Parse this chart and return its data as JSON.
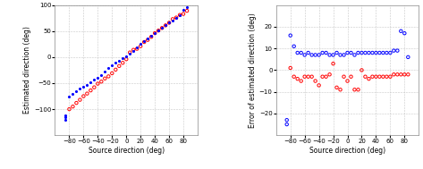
{
  "left_blue_x": [
    -85,
    -85,
    -85,
    -80,
    -75,
    -70,
    -65,
    -60,
    -55,
    -50,
    -45,
    -40,
    -35,
    -30,
    -25,
    -20,
    -15,
    -10,
    -5,
    0,
    5,
    10,
    15,
    20,
    25,
    30,
    35,
    40,
    45,
    50,
    55,
    60,
    65,
    70,
    75,
    80,
    85
  ],
  "left_blue_y": [
    -120,
    -115,
    -112,
    -75,
    -70,
    -65,
    -60,
    -57,
    -54,
    -49,
    -44,
    -39,
    -34,
    -27,
    -21,
    -16,
    -11,
    -7,
    -2,
    1,
    6,
    11,
    19,
    26,
    31,
    36,
    41,
    46,
    51,
    56,
    61,
    66,
    71,
    76,
    81,
    91,
    96
  ],
  "left_red_x": [
    -80,
    -75,
    -70,
    -65,
    -60,
    -55,
    -50,
    -45,
    -40,
    -35,
    -30,
    -25,
    -20,
    -15,
    -10,
    -5,
    0,
    5,
    10,
    15,
    20,
    25,
    30,
    35,
    40,
    45,
    50,
    55,
    60,
    65,
    70,
    75,
    80,
    85
  ],
  "left_red_y": [
    -100,
    -95,
    -88,
    -82,
    -75,
    -70,
    -64,
    -58,
    -51,
    -47,
    -41,
    -37,
    -31,
    -24,
    -17,
    -11,
    -4,
    9,
    14,
    16,
    21,
    29,
    33,
    39,
    46,
    51,
    56,
    61,
    66,
    73,
    76,
    81,
    83,
    89
  ],
  "right_blue_x": [
    -85,
    -85,
    -80,
    -75,
    -70,
    -65,
    -60,
    -55,
    -50,
    -45,
    -40,
    -35,
    -30,
    -25,
    -20,
    -15,
    -10,
    -5,
    0,
    5,
    10,
    15,
    20,
    25,
    30,
    35,
    40,
    45,
    50,
    55,
    60,
    65,
    70,
    75,
    80,
    85
  ],
  "right_blue_y": [
    -25,
    -23,
    16,
    11,
    8,
    8,
    7,
    8,
    7,
    7,
    7,
    8,
    8,
    7,
    7,
    8,
    7,
    7,
    8,
    8,
    7,
    8,
    8,
    8,
    8,
    8,
    8,
    8,
    8,
    8,
    8,
    9,
    9,
    18,
    17,
    6
  ],
  "right_red_x": [
    -80,
    -75,
    -70,
    -65,
    -60,
    -55,
    -50,
    -45,
    -40,
    -35,
    -30,
    -25,
    -20,
    -15,
    -10,
    -5,
    0,
    5,
    10,
    15,
    20,
    25,
    30,
    35,
    40,
    45,
    50,
    55,
    60,
    65,
    70,
    75,
    80,
    85
  ],
  "right_red_y": [
    1,
    -3,
    -4,
    -5,
    -3,
    -3,
    -3,
    -5,
    -7,
    -3,
    -3,
    -2,
    3,
    -8,
    -9,
    -3,
    -5,
    -3,
    -9,
    -9,
    0,
    -3,
    -4,
    -3,
    -3,
    -3,
    -3,
    -3,
    -3,
    -2,
    -2,
    -2,
    -2,
    -2
  ],
  "left_xlim": [
    -100,
    100
  ],
  "left_ylim": [
    -150,
    100
  ],
  "right_xlim": [
    -100,
    100
  ],
  "right_ylim": [
    -30,
    30
  ],
  "left_xticks": [
    -80,
    -60,
    -40,
    -20,
    0,
    20,
    40,
    60,
    80
  ],
  "left_yticks": [
    -100,
    -50,
    0,
    50,
    100
  ],
  "right_xticks": [
    -80,
    -60,
    -40,
    -20,
    0,
    20,
    40,
    60,
    80
  ],
  "right_yticks": [
    -20,
    -10,
    0,
    10,
    20
  ],
  "left_xlabel": "Source direction (deg)",
  "left_ylabel": "Estimated direction (deg)",
  "right_xlabel": "Source direction (deg)",
  "right_ylabel": "Error of estimated direction (deg)",
  "blue_color": "#0000FF",
  "red_color": "#FF0000",
  "grid_color": "#BBBBBB",
  "bg_color": "#FFFFFF"
}
